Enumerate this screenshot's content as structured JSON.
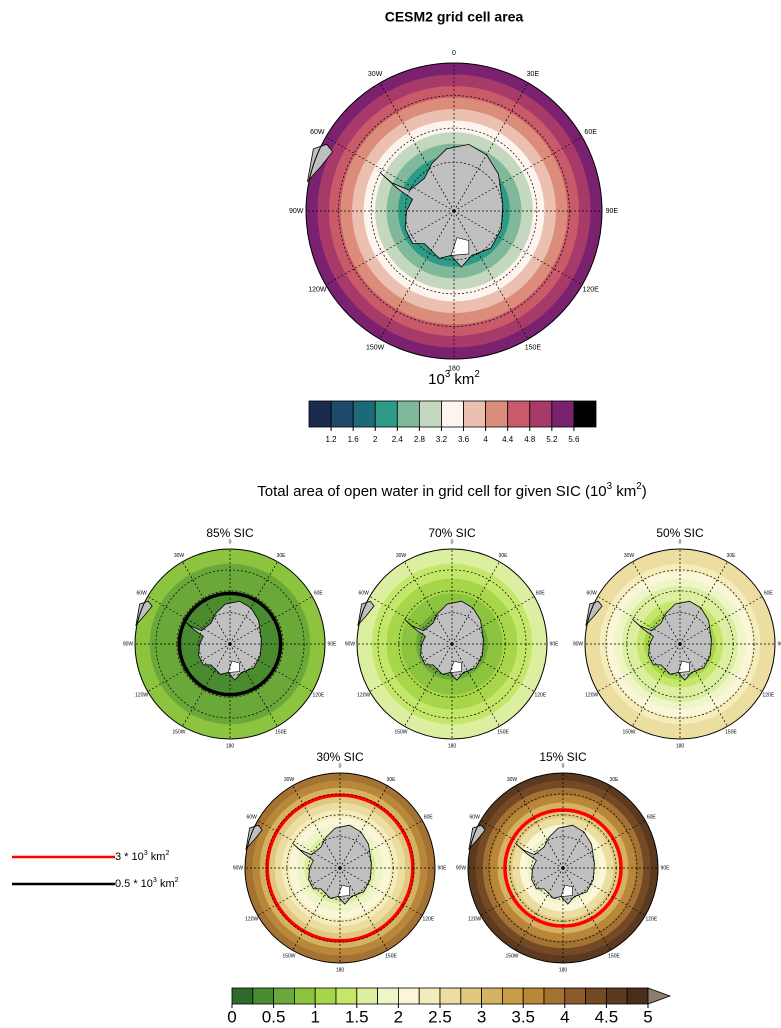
{
  "top": {
    "title": "CESM2 grid cell area",
    "lon_labels": [
      "0",
      "30E",
      "60E",
      "90E",
      "120E",
      "150E",
      "180",
      "150W",
      "120W",
      "90W",
      "60W",
      "30W"
    ],
    "rings": [
      5.4,
      5.0,
      4.6,
      4.2,
      3.8,
      3.4,
      3.0,
      2.6,
      2.2
    ],
    "unit": [
      "10",
      "3",
      " km",
      "2"
    ],
    "colorbar": {
      "colors": [
        "#1a2a4e",
        "#1d4a6a",
        "#1c6a78",
        "#2e9a88",
        "#80b89a",
        "#c4d8c0",
        "#fdf4ee",
        "#ecc0b0",
        "#dc8c7a",
        "#c85a6a",
        "#a83a6a",
        "#7a2270",
        "#000000"
      ],
      "ticks": [
        1.2,
        1.6,
        2,
        2.4,
        2.8,
        3.2,
        3.6,
        4,
        4.4,
        4.8,
        5.2,
        5.6
      ]
    }
  },
  "bottom": {
    "title": [
      "Total area of open water in grid cell for given SIC (10",
      "3",
      " km",
      "2",
      ")"
    ],
    "panels": [
      {
        "title": "85% SIC",
        "rings": [
          0.81,
          0.75,
          0.69,
          0.63,
          0.57,
          0.51,
          0.45,
          0.39,
          0.33
        ],
        "contour_color": "#000000"
      },
      {
        "title": "70% SIC",
        "rings": [
          1.62,
          1.5,
          1.38,
          1.26,
          1.14,
          1.02,
          0.9,
          0.78,
          0.66
        ]
      },
      {
        "title": "50% SIC",
        "rings": [
          2.7,
          2.5,
          2.3,
          2.1,
          1.9,
          1.7,
          1.5,
          1.3,
          1.1
        ]
      },
      {
        "title": "30% SIC",
        "rings": [
          3.78,
          3.5,
          3.22,
          2.94,
          2.66,
          2.38,
          2.1,
          1.82,
          1.54
        ],
        "contour_color": "#ff0000"
      },
      {
        "title": "15% SIC",
        "rings": [
          4.59,
          4.25,
          3.91,
          3.57,
          3.23,
          2.89,
          2.55,
          2.21,
          1.87
        ],
        "contour_color": "#ff0000"
      }
    ],
    "legend": [
      {
        "label": [
          "3 * 10",
          "3",
          " km",
          "2"
        ],
        "value": 3,
        "color": "#ff0000"
      },
      {
        "label": [
          "0.5 * 10",
          "3",
          " km",
          "2"
        ],
        "value": 0.5,
        "color": "#000000"
      }
    ],
    "colorbar": {
      "colors": [
        "#2e6b2a",
        "#4a8b30",
        "#6aa83a",
        "#8cc43f",
        "#a8d64a",
        "#c4e66a",
        "#dcefa0",
        "#eef6c8",
        "#fbf6d8",
        "#f5ecbc",
        "#ecdda0",
        "#e0c880",
        "#d4b262",
        "#c89c48",
        "#b8873a",
        "#a47232",
        "#8c5c2c",
        "#744a26",
        "#5c3a20",
        "#4a2e1a"
      ],
      "extend_color": "#8a7d70",
      "ticks": [
        0,
        0.5,
        1,
        1.5,
        2,
        2.5,
        3,
        3.5,
        4,
        4.5,
        5
      ]
    }
  }
}
